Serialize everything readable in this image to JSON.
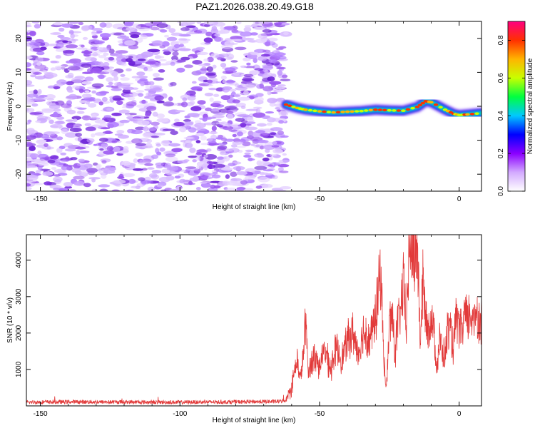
{
  "title": "PAZ1.2026.038.20.49.G18",
  "colors": {
    "snr_line": "#e23a3a",
    "spectro_noise": "#7b2fe0",
    "frame": "#000000"
  },
  "chart_data": [
    {
      "type": "heatmap",
      "name": "spectrogram",
      "xlabel": "Height of straight line (km)",
      "ylabel": "Frequency (Hz)",
      "xlim": [
        -155,
        8
      ],
      "ylim": [
        -25,
        25
      ],
      "xticks": [
        -150,
        -100,
        -50,
        0
      ],
      "yticks": [
        -20,
        -10,
        0,
        10,
        20
      ],
      "x_tick_labels": [
        "-150",
        "-100",
        "-50",
        "0"
      ],
      "y_tick_labels": [
        "-20",
        "-10",
        "0",
        "10",
        "20"
      ],
      "noise_region_x": [
        -155,
        -62
      ],
      "signal_track": {
        "x": [
          -62,
          -58,
          -55,
          -50,
          -45,
          -40,
          -35,
          -30,
          -25,
          -20,
          -15,
          -12,
          -10,
          -5,
          -2,
          0,
          3,
          8
        ],
        "y": [
          0.5,
          -0.5,
          -1.0,
          -1.5,
          -1.8,
          -1.6,
          -1.4,
          -1.0,
          -1.2,
          -1.3,
          -0.2,
          1.5,
          1.2,
          -1.0,
          -2.2,
          -2.6,
          -2.4,
          -2.0
        ]
      },
      "colorbar": {
        "label": "Normalized spectral amplitude",
        "ticks": [
          0.0,
          0.2,
          0.4,
          0.6,
          0.8
        ],
        "tick_labels": [
          "0.0",
          "0.2",
          "0.4",
          "0.6",
          "0.8"
        ],
        "range": [
          0.0,
          0.9
        ],
        "stops": [
          "#ffffff",
          "#d3aaff",
          "#8b00ff",
          "#0000ff",
          "#00c8ff",
          "#00ff40",
          "#c8ff00",
          "#ffb400",
          "#ff3000",
          "#ff0080"
        ]
      }
    },
    {
      "type": "line",
      "name": "snr",
      "xlabel": "Height of straight line (km)",
      "ylabel": "SNR (10 * v/v)",
      "xlim": [
        -155,
        8
      ],
      "ylim": [
        0,
        4700
      ],
      "xticks": [
        -150,
        -100,
        -50,
        0
      ],
      "yticks": [
        1000,
        2000,
        3000,
        4000
      ],
      "x_tick_labels": [
        "-150",
        "-100",
        "-50",
        "0"
      ],
      "y_tick_labels": [
        "1000",
        "2000",
        "3000",
        "4000"
      ],
      "series": [
        {
          "name": "SNR",
          "x": [
            -155,
            -140,
            -120,
            -100,
            -80,
            -65,
            -62,
            -60,
            -59,
            -58,
            -57,
            -56,
            -55,
            -54,
            -52,
            -50,
            -48,
            -46,
            -44,
            -42,
            -40,
            -38,
            -36,
            -34,
            -32,
            -30,
            -28,
            -27,
            -26,
            -25,
            -24,
            -23,
            -22,
            -21,
            -20,
            -19,
            -18,
            -17,
            -16,
            -15,
            -14,
            -13,
            -12,
            -11,
            -10,
            -9,
            -8,
            -7,
            -6,
            -5,
            -4,
            -3,
            -2,
            -1,
            0,
            1,
            2,
            3,
            4,
            5,
            6,
            7,
            8
          ],
          "y": [
            100,
            110,
            105,
            100,
            110,
            120,
            150,
            500,
            900,
            1300,
            700,
            1200,
            2300,
            900,
            1400,
            1100,
            1500,
            1000,
            1600,
            1300,
            1800,
            2000,
            1400,
            2100,
            1800,
            2400,
            3700,
            1200,
            500,
            2200,
            2600,
            1400,
            2300,
            2500,
            3400,
            2200,
            4000,
            4700,
            3900,
            4600,
            1800,
            3400,
            2400,
            2100,
            2500,
            2000,
            1100,
            1800,
            1500,
            1400,
            2200,
            2000,
            1600,
            2400,
            2100,
            2000,
            2500,
            2300,
            2600,
            2200,
            2800,
            2300,
            2400
          ]
        }
      ]
    }
  ]
}
